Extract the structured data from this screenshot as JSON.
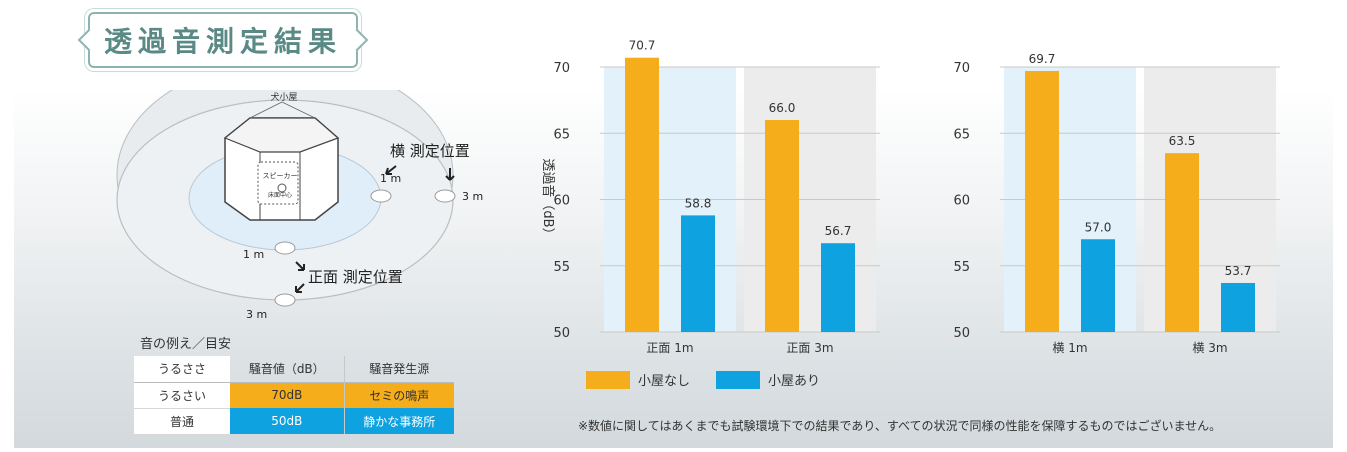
{
  "title": "透過音測定結果",
  "diagram": {
    "doghouse_label": "犬小屋",
    "speaker_label": "スピーカー",
    "speaker_sub": "床面中心",
    "side_position_label": "横 測定位置",
    "front_position_label": "正面 測定位置",
    "dist_1m_side": "1 m",
    "dist_3m_side": "3 m",
    "dist_1m_front": "1 m",
    "dist_3m_front": "3 m"
  },
  "reference": {
    "caption": "音の例え／目安",
    "headers": [
      "うるささ",
      "騒音値（dB）",
      "騒音発生源"
    ],
    "rows": [
      [
        "うるさい",
        "70dB",
        "セミの鳴声"
      ],
      [
        "普通",
        "50dB",
        "静かな事務所"
      ]
    ],
    "colors": {
      "loud": "#f5ad1b",
      "normal": "#0ea2e0"
    }
  },
  "chart_data": [
    {
      "type": "bar",
      "ylabel": "透過音（dB）",
      "ylim": [
        50,
        70
      ],
      "yticks": [
        50,
        55,
        60,
        65,
        70
      ],
      "categories": [
        "正面 1m",
        "正面 3m"
      ],
      "series": [
        {
          "name": "小屋なし",
          "color": "#f5ad1b",
          "values": [
            70.7,
            66.0
          ],
          "labels": [
            "70.7",
            "66.0"
          ]
        },
        {
          "name": "小屋あり",
          "color": "#0ea2e0",
          "values": [
            58.8,
            56.7
          ],
          "labels": [
            "58.8",
            "56.7"
          ]
        }
      ]
    },
    {
      "type": "bar",
      "ylabel": "",
      "ylim": [
        50,
        70
      ],
      "yticks": [
        50,
        55,
        60,
        65,
        70
      ],
      "categories": [
        "横 1m",
        "横 3m"
      ],
      "series": [
        {
          "name": "小屋なし",
          "color": "#f5ad1b",
          "values": [
            69.7,
            63.5
          ],
          "labels": [
            "69.7",
            "63.5"
          ]
        },
        {
          "name": "小屋あり",
          "color": "#0ea2e0",
          "values": [
            57.0,
            53.7
          ],
          "labels": [
            "57.0",
            "53.7"
          ]
        }
      ]
    }
  ],
  "legend": {
    "items": [
      {
        "label": "小屋なし",
        "color": "#f5ad1b"
      },
      {
        "label": "小屋あり",
        "color": "#0ea2e0"
      }
    ]
  },
  "disclaimer": "※数値に関してはあくまでも試験環境下での結果であり、すべての状況で同様の性能を保障するものではございません。"
}
